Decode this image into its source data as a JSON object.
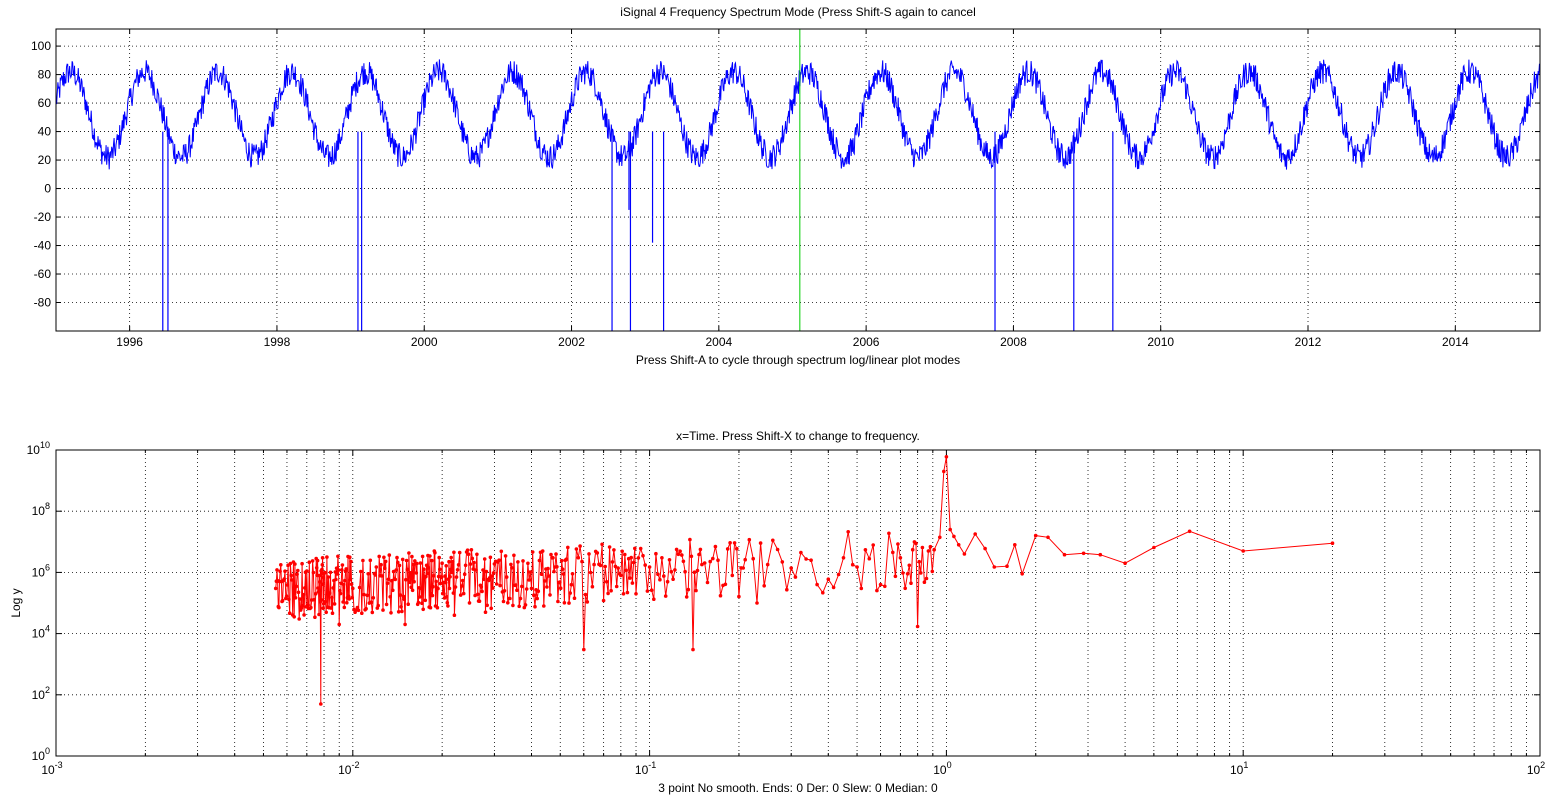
{
  "window": {
    "top_title": "iSignal 4   Frequency Spectrum Mode (Press Shift-S again to cancel",
    "top_xlabel": "Press Shift-A to cycle through spectrum log/linear plot modes",
    "bottom_title": "x=Time. Press Shift-X to change to frequency.",
    "bottom_ylabel": "Log y",
    "bottom_xlabel": "3 point No smooth. Ends: 0    Der: 0    Slew: 0    Median: 0"
  },
  "chart_data": [
    {
      "type": "line",
      "title": "iSignal 4   Frequency Spectrum Mode (Press Shift-S again to cancel",
      "xlabel": "Press Shift-A to cycle through spectrum log/linear plot modes",
      "ylabel": "",
      "xlim": [
        1995.0,
        2015.15
      ],
      "ylim": [
        -100,
        112
      ],
      "xticks": [
        1996,
        1998,
        2000,
        2002,
        2004,
        2006,
        2008,
        2010,
        2012,
        2014
      ],
      "yticks": [
        -80,
        -60,
        -40,
        -20,
        0,
        20,
        40,
        60,
        80,
        100
      ],
      "grid": true,
      "line_color": "#0000ff",
      "marker_color": "#00cc00",
      "cursor_x": 2005.1,
      "signal_description": {
        "baseline": 52,
        "seasonal_amplitude": 30,
        "period_years": 1.0,
        "noise_amplitude": 9
      },
      "dropouts": [
        {
          "x": 1996.45,
          "y": -100
        },
        {
          "x": 1996.52,
          "y": -100
        },
        {
          "x": 1999.1,
          "y": -100
        },
        {
          "x": 1999.15,
          "y": -100
        },
        {
          "x": 2002.55,
          "y": -100
        },
        {
          "x": 2002.78,
          "y": -15
        },
        {
          "x": 2002.8,
          "y": -100
        },
        {
          "x": 2003.1,
          "y": -38
        },
        {
          "x": 2003.25,
          "y": -100
        },
        {
          "x": 2007.75,
          "y": -100
        },
        {
          "x": 2008.82,
          "y": -100
        },
        {
          "x": 2009.35,
          "y": -100
        }
      ]
    },
    {
      "type": "line",
      "title": "x=Time. Press Shift-X to change to frequency.",
      "xlabel": "3 point No smooth. Ends: 0    Der: 0    Slew: 0    Median: 0",
      "ylabel": "Log y",
      "xscale": "log",
      "yscale": "log",
      "xlim": [
        0.001,
        100
      ],
      "ylim": [
        1,
        10000000000
      ],
      "xtick_labels": [
        "10-3",
        "10-2",
        "10-1",
        "100",
        "101",
        "102"
      ],
      "ytick_labels": [
        "100",
        "102",
        "104",
        "106",
        "108",
        "1010"
      ],
      "grid": true,
      "line_color": "#ff0000",
      "marker": "dot",
      "series": [
        {
          "x": [
            0.0055,
            0.0058,
            0.0062,
            0.0066,
            0.007,
            0.0075,
            0.0078,
            0.008,
            0.0085,
            0.009,
            0.0095,
            0.01,
            0.011,
            0.012,
            0.013,
            0.014,
            0.015,
            0.016,
            0.017,
            0.018,
            0.019,
            0.02,
            0.021,
            0.022,
            0.024,
            0.026,
            0.028,
            0.03,
            0.033,
            0.036,
            0.04,
            0.044,
            0.048,
            0.052,
            0.055,
            0.06,
            0.065,
            0.07,
            0.075,
            0.08,
            0.085,
            0.09,
            0.1,
            0.11,
            0.12,
            0.13,
            0.14,
            0.15,
            0.17,
            0.19,
            0.21,
            0.23,
            0.25,
            0.28,
            0.31,
            0.35,
            0.4,
            0.45,
            0.5,
            0.55,
            0.6,
            0.66,
            0.7,
            0.74,
            0.77,
            0.8,
            0.83,
            0.87,
            0.91,
            0.95,
            0.98,
            1.0,
            1.03,
            1.06,
            1.1,
            1.15,
            1.25,
            1.35,
            1.45,
            1.6,
            1.7,
            1.8,
            2.0,
            2.2,
            2.5,
            2.9,
            3.3,
            4.0,
            5.0,
            6.6,
            10.0,
            20.0
          ],
          "y": [
            300000,
            120000,
            800000,
            30000,
            1100000,
            200000,
            50,
            900000,
            150000,
            20000,
            1300000,
            300000,
            60000,
            1500000,
            90000,
            1200000,
            20000,
            1800000,
            300000,
            1400000,
            80000,
            2000000,
            600000,
            40000,
            1700000,
            1200000,
            50000,
            1900000,
            700000,
            2200000,
            300000,
            80000,
            1500000,
            2500000,
            900000,
            3000,
            1800000,
            120000,
            2200000,
            800000,
            2800000,
            200000,
            1500000,
            3000000,
            600000,
            2300000,
            3000,
            1800000,
            2500000,
            800000,
            2600000,
            100000,
            1800000,
            2200000,
            700000,
            2500000,
            600000,
            3000000,
            1500000,
            2800000,
            400000,
            4500000,
            3000000,
            900000,
            5500000,
            17000,
            6500000,
            5000000,
            5500000,
            14000000,
            2000000000,
            6000000000,
            25000000,
            15000000,
            8000000,
            4000000,
            18000000,
            6000000,
            1500000,
            1600000,
            8000000,
            900000,
            16000000,
            14000000,
            3800000,
            4200000,
            3800000,
            2000000,
            6500000,
            22000000,
            5000000,
            9000000
          ]
        }
      ]
    }
  ]
}
